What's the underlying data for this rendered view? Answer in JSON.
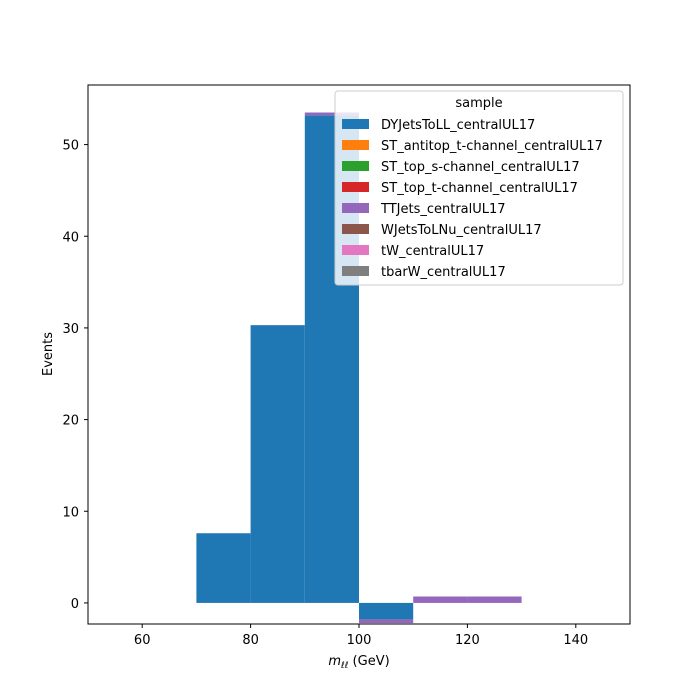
{
  "chart_data": {
    "type": "bar",
    "subtype": "stacked-histogram",
    "xlabel_main": "m",
    "xlabel_sub": "ℓℓ",
    "xlabel_unit": " (GeV)",
    "ylabel": "Events",
    "xlim": [
      50,
      150
    ],
    "ylim": [
      -2.3,
      56.5
    ],
    "xticks": [
      60,
      80,
      100,
      120,
      140
    ],
    "yticks": [
      0,
      10,
      20,
      30,
      40,
      50
    ],
    "bin_edges": [
      50,
      60,
      70,
      80,
      90,
      100,
      110,
      120,
      130,
      140,
      150
    ],
    "legend": {
      "title": "sample",
      "placement": "top-right"
    },
    "series": [
      {
        "name": "DYJetsToLL_centralUL17",
        "color": "#1f77b4",
        "values": [
          0,
          0,
          7.6,
          30.3,
          53.2,
          -1.8,
          0,
          0,
          0,
          0
        ]
      },
      {
        "name": "ST_antitop_t-channel_centralUL17",
        "color": "#ff7f0e",
        "values": [
          0,
          0,
          0,
          0,
          0,
          0,
          0,
          0,
          0,
          0
        ]
      },
      {
        "name": "ST_top_s-channel_centralUL17",
        "color": "#2ca02c",
        "values": [
          0,
          0,
          0,
          0,
          0,
          0,
          0,
          0,
          0,
          0
        ]
      },
      {
        "name": "ST_top_t-channel_centralUL17",
        "color": "#d62728",
        "values": [
          0,
          0,
          0,
          0,
          0,
          0,
          0,
          0,
          0,
          0
        ]
      },
      {
        "name": "TTJets_centralUL17",
        "color": "#9467bd",
        "values": [
          0,
          0,
          0,
          0,
          0.3,
          -0.4,
          0.7,
          0.7,
          0,
          0
        ]
      },
      {
        "name": "WJetsToLNu_centralUL17",
        "color": "#8c564b",
        "values": [
          0,
          0,
          0,
          0,
          0,
          0,
          0,
          0,
          0,
          0
        ]
      },
      {
        "name": "tW_centralUL17",
        "color": "#e377c2",
        "values": [
          0,
          0,
          0,
          0,
          0,
          0,
          0,
          0,
          0,
          0
        ]
      },
      {
        "name": "tbarW_centralUL17",
        "color": "#7f7f7f",
        "values": [
          0,
          0,
          0,
          0,
          0,
          0,
          0,
          0,
          0,
          0
        ]
      }
    ]
  }
}
